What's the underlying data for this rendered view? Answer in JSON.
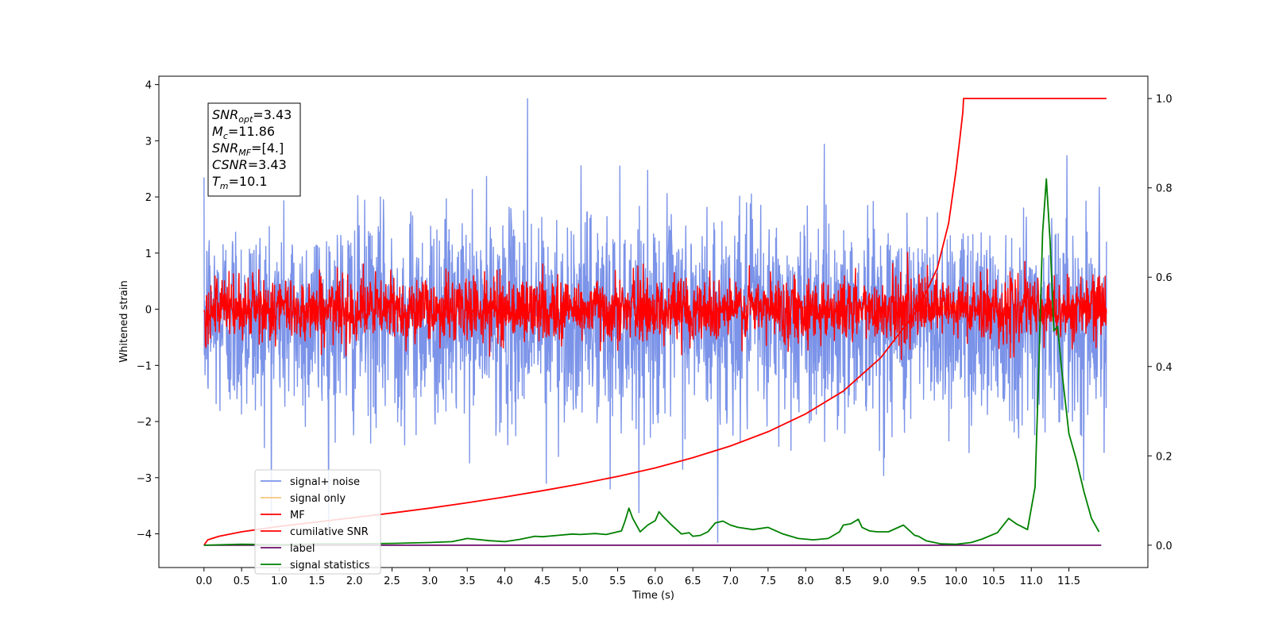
{
  "chart_data": {
    "type": "line",
    "xlabel": "Time (s)",
    "ylabel": "Whitened strain",
    "xlim": [
      -0.6,
      12.55
    ],
    "ylim": [
      -4.6,
      4.15
    ],
    "y2lim": [
      -0.05,
      1.05
    ],
    "x_ticks": [
      "0.0",
      "0.5",
      "1.0",
      "1.5",
      "2.0",
      "2.5",
      "3.0",
      "3.5",
      "4.0",
      "4.5",
      "5.0",
      "5.5",
      "6.0",
      "6.5",
      "7.0",
      "7.5",
      "8.0",
      "8.5",
      "9.0",
      "9.5",
      "10.0",
      "10.5",
      "11.0",
      "11.5"
    ],
    "y_ticks": [
      "4",
      "3",
      "2",
      "1",
      "0",
      "−1",
      "−2",
      "−3",
      "−4"
    ],
    "y2_ticks": [
      "1.0",
      "0.8",
      "0.6",
      "0.4",
      "0.2",
      "0.0"
    ],
    "grid": false,
    "legend_position": "lower-left",
    "info_box": {
      "lines": [
        {
          "sym": "SNR",
          "sub": "opt",
          "val": "=3.43"
        },
        {
          "sym": "M",
          "sub": "c",
          "val": "=11.86"
        },
        {
          "sym": "SNR",
          "sub": "MF",
          "val": "=[4.]"
        },
        {
          "sym": "CSNR",
          "sub": "",
          "val": "=3.43"
        },
        {
          "sym": "T",
          "sub": "m",
          "val": "=10.1"
        }
      ]
    },
    "series": [
      {
        "name": "signal+ noise",
        "color": "#7b93e8",
        "axis": "left",
        "kind": "noise",
        "x_range": [
          0.0,
          12.0
        ],
        "std": 0.9,
        "mean": -0.15,
        "spikes": [
          [
            4.3,
            3.75
          ],
          [
            6.83,
            -4.15
          ],
          [
            5.4,
            -3.2
          ],
          [
            4.55,
            -3.1
          ]
        ]
      },
      {
        "name": "signal only",
        "color": "#f5c77e",
        "axis": "left",
        "kind": "chirp",
        "x_range": [
          9.5,
          10.1
        ],
        "amp": 0.1
      },
      {
        "name": "MF",
        "color": "#ff0000",
        "axis": "left",
        "kind": "noise",
        "x_range": [
          0.0,
          12.0
        ],
        "std": 0.28,
        "mean": 0.0
      },
      {
        "name": "cumilative SNR",
        "color": "#ff0000",
        "axis": "right",
        "kind": "line",
        "x": [
          0.0,
          0.05,
          0.2,
          0.5,
          1.0,
          1.5,
          2.0,
          2.5,
          3.0,
          3.5,
          4.0,
          4.5,
          5.0,
          5.5,
          6.0,
          6.5,
          7.0,
          7.5,
          8.0,
          8.5,
          9.0,
          9.5,
          9.75,
          9.9,
          10.0,
          10.05,
          10.09,
          10.1,
          12.0
        ],
        "y": [
          0.0,
          0.012,
          0.02,
          0.03,
          0.042,
          0.052,
          0.062,
          0.072,
          0.083,
          0.095,
          0.108,
          0.122,
          0.137,
          0.154,
          0.173,
          0.196,
          0.222,
          0.254,
          0.294,
          0.345,
          0.42,
          0.53,
          0.62,
          0.72,
          0.84,
          0.91,
          0.97,
          1.0,
          1.0
        ]
      },
      {
        "name": "label",
        "color": "#6a0d6a",
        "axis": "right",
        "kind": "line",
        "x": [
          0.0,
          11.93
        ],
        "y": [
          0.0,
          0.0
        ]
      },
      {
        "name": "signal statistics",
        "color": "#008000",
        "axis": "right",
        "kind": "line",
        "x": [
          0.0,
          0.5,
          1.0,
          1.5,
          2.0,
          2.5,
          3.0,
          3.3,
          3.5,
          3.8,
          4.0,
          4.2,
          4.4,
          4.5,
          4.7,
          4.9,
          5.0,
          5.2,
          5.35,
          5.45,
          5.55,
          5.6,
          5.65,
          5.7,
          5.8,
          5.9,
          6.0,
          6.05,
          6.1,
          6.2,
          6.35,
          6.45,
          6.5,
          6.6,
          6.7,
          6.8,
          6.9,
          7.0,
          7.1,
          7.3,
          7.5,
          7.7,
          7.9,
          8.1,
          8.3,
          8.45,
          8.5,
          8.6,
          8.7,
          8.75,
          8.85,
          8.95,
          9.1,
          9.3,
          9.45,
          9.5,
          9.6,
          9.8,
          10.0,
          10.2,
          10.35,
          10.55,
          10.7,
          10.8,
          10.95,
          11.05,
          11.1,
          11.15,
          11.2,
          11.25,
          11.3,
          11.35,
          11.4,
          11.5,
          11.6,
          11.7,
          11.8,
          11.9
        ],
        "y": [
          0.0,
          0.002,
          0.001,
          0.003,
          0.003,
          0.004,
          0.006,
          0.008,
          0.015,
          0.01,
          0.008,
          0.013,
          0.02,
          0.019,
          0.022,
          0.025,
          0.024,
          0.026,
          0.024,
          0.028,
          0.032,
          0.055,
          0.083,
          0.06,
          0.03,
          0.045,
          0.055,
          0.075,
          0.065,
          0.048,
          0.025,
          0.028,
          0.02,
          0.022,
          0.03,
          0.05,
          0.054,
          0.045,
          0.04,
          0.035,
          0.04,
          0.025,
          0.015,
          0.012,
          0.015,
          0.03,
          0.045,
          0.048,
          0.058,
          0.04,
          0.032,
          0.03,
          0.03,
          0.045,
          0.022,
          0.02,
          0.01,
          0.003,
          0.002,
          0.006,
          0.014,
          0.028,
          0.06,
          0.048,
          0.035,
          0.13,
          0.4,
          0.7,
          0.82,
          0.68,
          0.48,
          0.49,
          0.4,
          0.25,
          0.19,
          0.12,
          0.06,
          0.03
        ]
      }
    ]
  }
}
